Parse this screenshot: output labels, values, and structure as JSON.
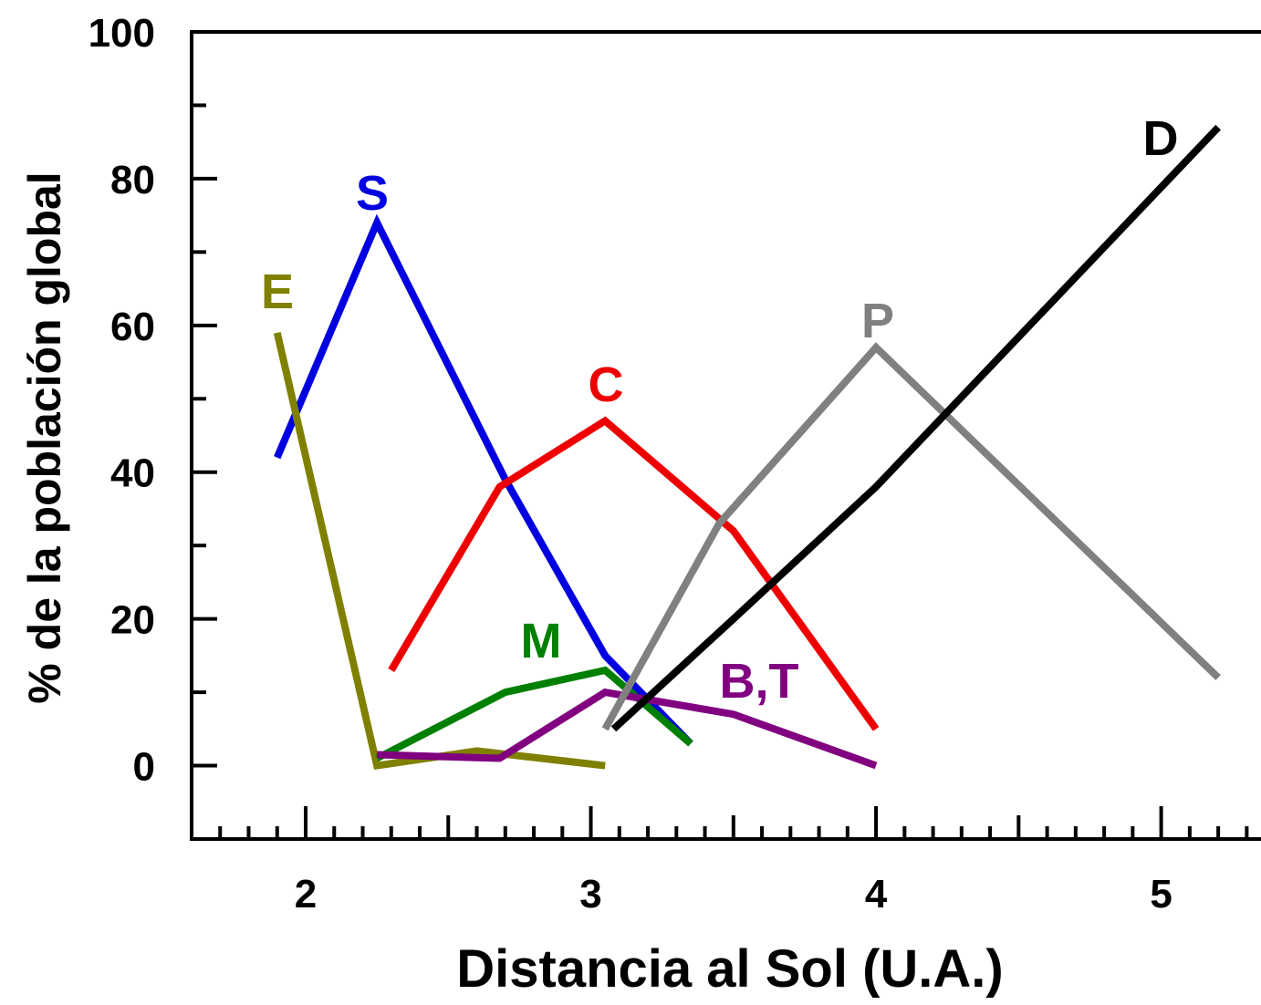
{
  "chart_data": {
    "type": "line",
    "xlabel": "Distancia al Sol (U.A.)",
    "ylabel": "% de la población global",
    "xlim": [
      1.6,
      5.35
    ],
    "ylim": [
      -10,
      100
    ],
    "x_ticks": [
      2,
      3,
      4,
      5
    ],
    "y_ticks": [
      0,
      20,
      40,
      60,
      80,
      100
    ],
    "grid": false,
    "series": [
      {
        "name": "S",
        "color": "#0000e0",
        "x": [
          1.9,
          2.25,
          2.7,
          3.05,
          3.35
        ],
        "y": [
          42,
          74,
          39,
          15,
          3
        ]
      },
      {
        "name": "C",
        "color": "#ee0000",
        "x": [
          2.3,
          2.68,
          3.05,
          3.5,
          4.0
        ],
        "y": [
          13,
          38,
          47,
          32,
          5
        ]
      },
      {
        "name": "E",
        "color": "#808000",
        "x": [
          1.9,
          2.25,
          2.6,
          3.05
        ],
        "y": [
          59,
          0,
          2,
          0
        ]
      },
      {
        "name": "M",
        "color": "#008000",
        "x": [
          2.25,
          2.7,
          3.05,
          3.35
        ],
        "y": [
          1,
          10,
          13,
          3
        ]
      },
      {
        "name": "B,T",
        "color": "#800080",
        "x": [
          2.25,
          2.68,
          3.05,
          3.5,
          4.0
        ],
        "y": [
          1.5,
          1,
          10,
          7,
          0
        ]
      },
      {
        "name": "P",
        "color": "#808080",
        "x": [
          3.05,
          3.45,
          4.0,
          5.2
        ],
        "y": [
          5,
          33,
          57,
          12
        ]
      },
      {
        "name": "D",
        "color": "#000000",
        "x": [
          3.08,
          3.5,
          4.0,
          5.2
        ],
        "y": [
          5,
          20,
          38,
          87
        ]
      }
    ]
  }
}
